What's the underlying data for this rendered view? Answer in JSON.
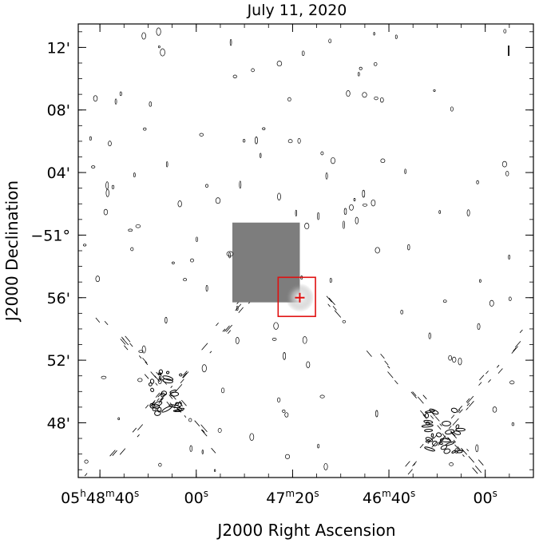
{
  "chart_data": {
    "type": "contour",
    "title": "July 11, 2020",
    "xlabel": "J2000 Right Ascension",
    "ylabel": "J2000 Declination",
    "stokes_label": "I",
    "x_ticks": [
      {
        "h": "05",
        "m": "48",
        "s": "40"
      },
      {
        "h": "",
        "m": "",
        "s": "00"
      },
      {
        "h": "",
        "m": "47",
        "s": "20"
      },
      {
        "h": "",
        "m": "46",
        "s": "40"
      },
      {
        "h": "",
        "m": "",
        "s": "00"
      }
    ],
    "y_ticks": [
      {
        "deg": "",
        "min": "48'"
      },
      {
        "deg": "",
        "min": "52'"
      },
      {
        "deg": "",
        "min": "56'"
      },
      {
        "deg": "−51°",
        "min": ""
      },
      {
        "deg": "",
        "min": "04'"
      },
      {
        "deg": "",
        "min": "08'"
      },
      {
        "deg": "",
        "min": "12'"
      }
    ],
    "x_tick_seconds": [
      40,
      0,
      -40,
      -80,
      -120
    ],
    "y_tick_arcmin": [
      -12,
      -8,
      -4,
      0,
      4,
      8,
      12
    ],
    "x_range_seconds": [
      49,
      -140
    ],
    "y_range_arcmin": [
      -15.5,
      13.5
    ],
    "inset": {
      "ra_seconds": [
        -15,
        -43
      ],
      "dec_arcmin": [
        0.8,
        -4.3
      ],
      "box_ra_seconds": [
        -34,
        -49.5
      ],
      "box_dec_arcmin": [
        -2.7,
        -5.2
      ],
      "source_ra_seconds": [
        -43
      ],
      "source_dec_arcmin": [
        -4.0
      ],
      "box_color": "#e01010",
      "background_color": "#7d7d7d"
    },
    "bright_sources": [
      {
        "ra_seconds": 12,
        "dec_arcmin": -10
      },
      {
        "ra_seconds": -103,
        "dec_arcmin": -12.5
      }
    ],
    "contour_color": "#000000"
  }
}
